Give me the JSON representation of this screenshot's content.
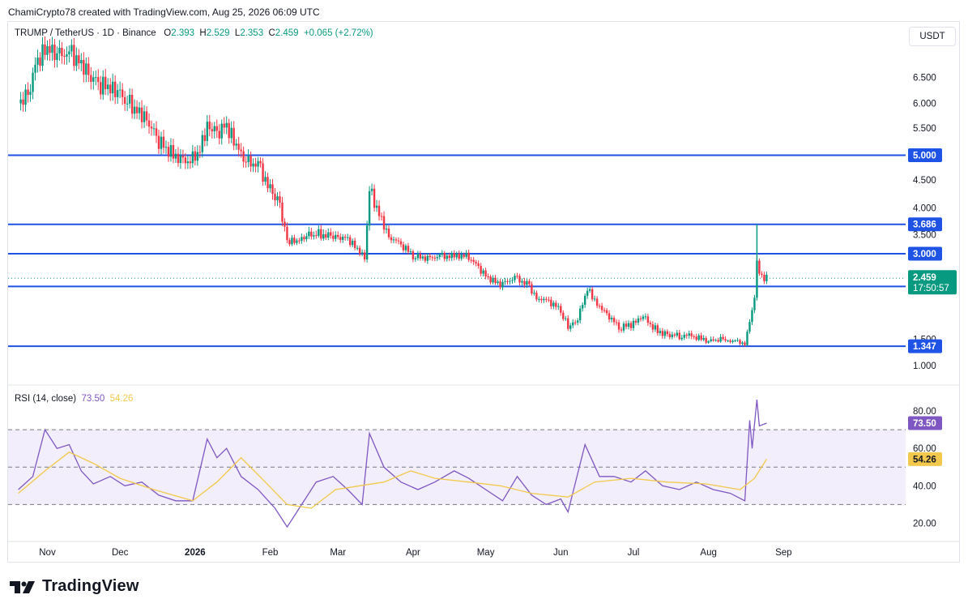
{
  "caption": "ChamiCrypto78 created with TradingView.com, Aug 25, 2026 06:09 UTC",
  "legend": {
    "symbol": "TRUMP / TetherUS · 1D · Binance",
    "o_label": "O",
    "o": "2.393",
    "h_label": "H",
    "h": "2.529",
    "l_label": "L",
    "l": "2.353",
    "c_label": "C",
    "c": "2.459",
    "change": "+0.065 (+2.72%)"
  },
  "currency": "USDT",
  "rsi_legend": {
    "label": "RSI (14, close)",
    "rsi": "73.50",
    "ma": "54.26"
  },
  "brand": "TradingView",
  "colors": {
    "up": "#089981",
    "down": "#f23645",
    "level": "#1e53e5",
    "rsi": "#7e57c2",
    "rsi_ma": "#f2c94c",
    "band": "#f3eefb"
  },
  "chart_data": [
    {
      "type": "candlestick",
      "ylim": [
        0.9,
        7.2
      ],
      "y_ticks": [
        "6.500",
        "6.000",
        "5.500",
        "5.000",
        "4.500",
        "4.000",
        "3.500",
        "1.500",
        "1.000"
      ],
      "x_ticks": [
        "Nov",
        "Dec",
        "2026",
        "Feb",
        "Mar",
        "Apr",
        "May",
        "Jun",
        "Jul",
        "Aug",
        "Sep"
      ],
      "levels": [
        {
          "label": "5.000",
          "value": 5.0
        },
        {
          "label": "3.686",
          "value": 3.686
        },
        {
          "label": "3.000",
          "value": 3.0
        },
        {
          "label": "2.300",
          "value": 2.3
        },
        {
          "label": "1.347",
          "value": 1.347
        }
      ],
      "last_price": {
        "label": "2.459",
        "countdown": "17:50:57",
        "value": 2.459
      },
      "series": [
        {
          "date": "2025-10-20",
          "close": 6.0
        },
        {
          "date": "2025-10-24",
          "close": 6.2
        },
        {
          "date": "2025-10-28",
          "close": 6.9
        },
        {
          "date": "2025-11-01",
          "close": 7.1
        },
        {
          "date": "2025-11-05",
          "close": 6.95
        },
        {
          "date": "2025-11-10",
          "close": 7.0
        },
        {
          "date": "2025-11-14",
          "close": 6.85
        },
        {
          "date": "2025-11-18",
          "close": 6.6
        },
        {
          "date": "2025-11-22",
          "close": 6.4
        },
        {
          "date": "2025-11-26",
          "close": 6.3
        },
        {
          "date": "2025-11-30",
          "close": 6.2
        },
        {
          "date": "2025-12-04",
          "close": 6.0
        },
        {
          "date": "2025-12-08",
          "close": 5.85
        },
        {
          "date": "2025-12-12",
          "close": 5.7
        },
        {
          "date": "2025-12-16",
          "close": 5.35
        },
        {
          "date": "2025-12-20",
          "close": 5.1
        },
        {
          "date": "2025-12-25",
          "close": 4.95
        },
        {
          "date": "2025-12-30",
          "close": 4.85
        },
        {
          "date": "2026-01-03",
          "close": 5.1
        },
        {
          "date": "2026-01-06",
          "close": 5.55
        },
        {
          "date": "2026-01-10",
          "close": 5.45
        },
        {
          "date": "2026-01-14",
          "close": 5.55
        },
        {
          "date": "2026-01-18",
          "close": 5.15
        },
        {
          "date": "2026-01-22",
          "close": 4.85
        },
        {
          "date": "2026-01-27",
          "close": 4.8
        },
        {
          "date": "2026-02-01",
          "close": 4.3
        },
        {
          "date": "2026-02-05",
          "close": 4.1
        },
        {
          "date": "2026-02-08",
          "close": 3.35
        },
        {
          "date": "2026-02-12",
          "close": 3.3
        },
        {
          "date": "2026-02-16",
          "close": 3.45
        },
        {
          "date": "2026-02-20",
          "close": 3.5
        },
        {
          "date": "2026-02-25",
          "close": 3.45
        },
        {
          "date": "2026-03-01",
          "close": 3.45
        },
        {
          "date": "2026-03-05",
          "close": 3.4
        },
        {
          "date": "2026-03-09",
          "close": 3.1
        },
        {
          "date": "2026-03-12",
          "close": 2.9
        },
        {
          "date": "2026-03-14",
          "close": 4.3
        },
        {
          "date": "2026-03-18",
          "close": 3.9
        },
        {
          "date": "2026-03-22",
          "close": 3.45
        },
        {
          "date": "2026-03-27",
          "close": 3.25
        },
        {
          "date": "2026-04-01",
          "close": 2.95
        },
        {
          "date": "2026-04-06",
          "close": 2.9
        },
        {
          "date": "2026-04-12",
          "close": 2.92
        },
        {
          "date": "2026-04-18",
          "close": 2.95
        },
        {
          "date": "2026-04-24",
          "close": 2.95
        },
        {
          "date": "2026-04-28",
          "close": 2.7
        },
        {
          "date": "2026-05-02",
          "close": 2.45
        },
        {
          "date": "2026-05-07",
          "close": 2.35
        },
        {
          "date": "2026-05-13",
          "close": 2.45
        },
        {
          "date": "2026-05-18",
          "close": 2.35
        },
        {
          "date": "2026-05-22",
          "close": 2.1
        },
        {
          "date": "2026-05-27",
          "close": 2.05
        },
        {
          "date": "2026-06-01",
          "close": 1.9
        },
        {
          "date": "2026-06-04",
          "close": 1.65
        },
        {
          "date": "2026-06-08",
          "close": 1.75
        },
        {
          "date": "2026-06-12",
          "close": 2.25
        },
        {
          "date": "2026-06-16",
          "close": 2.0
        },
        {
          "date": "2026-06-20",
          "close": 1.85
        },
        {
          "date": "2026-06-25",
          "close": 1.65
        },
        {
          "date": "2026-07-01",
          "close": 1.7
        },
        {
          "date": "2026-07-05",
          "close": 1.8
        },
        {
          "date": "2026-07-09",
          "close": 1.65
        },
        {
          "date": "2026-07-14",
          "close": 1.55
        },
        {
          "date": "2026-07-20",
          "close": 1.55
        },
        {
          "date": "2026-07-26",
          "close": 1.55
        },
        {
          "date": "2026-07-31",
          "close": 1.47
        },
        {
          "date": "2026-08-06",
          "close": 1.48
        },
        {
          "date": "2026-08-12",
          "close": 1.45
        },
        {
          "date": "2026-08-16",
          "close": 1.4
        },
        {
          "date": "2026-08-18",
          "close": 1.75
        },
        {
          "date": "2026-08-20",
          "close": 2.1
        },
        {
          "date": "2026-08-21",
          "close": 2.9
        },
        {
          "date": "2026-08-22",
          "close": 2.6
        },
        {
          "date": "2026-08-24",
          "close": 2.394
        },
        {
          "date": "2026-08-25",
          "close": 2.459
        }
      ],
      "spike": {
        "date": "2026-08-21",
        "high": 3.686
      }
    },
    {
      "type": "line",
      "title": "RSI (14, close)",
      "ylim": [
        14,
        92
      ],
      "y_ticks": [
        "80.00",
        "60.00",
        "40.00",
        "20.00"
      ],
      "bands": [
        70,
        50,
        30
      ],
      "series": [
        {
          "name": "RSI",
          "last": "73.50",
          "points": [
            [
              "2025-10-20",
              38
            ],
            [
              "2025-10-26",
              45
            ],
            [
              "2025-10-31",
              70
            ],
            [
              "2025-11-05",
              60
            ],
            [
              "2025-11-10",
              62
            ],
            [
              "2025-11-15",
              48
            ],
            [
              "2025-11-20",
              41
            ],
            [
              "2025-11-27",
              45
            ],
            [
              "2025-12-03",
              40
            ],
            [
              "2025-12-10",
              42
            ],
            [
              "2025-12-17",
              35
            ],
            [
              "2025-12-24",
              32
            ],
            [
              "2025-12-31",
              32
            ],
            [
              "2026-01-06",
              65
            ],
            [
              "2026-01-10",
              55
            ],
            [
              "2026-01-14",
              60
            ],
            [
              "2026-01-20",
              45
            ],
            [
              "2026-01-27",
              38
            ],
            [
              "2026-02-03",
              28
            ],
            [
              "2026-02-08",
              18
            ],
            [
              "2026-02-14",
              30
            ],
            [
              "2026-02-20",
              42
            ],
            [
              "2026-02-27",
              45
            ],
            [
              "2026-03-05",
              38
            ],
            [
              "2026-03-11",
              30
            ],
            [
              "2026-03-14",
              68
            ],
            [
              "2026-03-20",
              50
            ],
            [
              "2026-03-27",
              42
            ],
            [
              "2026-04-03",
              38
            ],
            [
              "2026-04-10",
              42
            ],
            [
              "2026-04-18",
              48
            ],
            [
              "2026-04-24",
              44
            ],
            [
              "2026-05-01",
              38
            ],
            [
              "2026-05-08",
              32
            ],
            [
              "2026-05-14",
              45
            ],
            [
              "2026-05-20",
              35
            ],
            [
              "2026-05-26",
              30
            ],
            [
              "2026-06-01",
              33
            ],
            [
              "2026-06-04",
              26
            ],
            [
              "2026-06-11",
              62
            ],
            [
              "2026-06-17",
              45
            ],
            [
              "2026-06-23",
              45
            ],
            [
              "2026-06-30",
              42
            ],
            [
              "2026-07-06",
              48
            ],
            [
              "2026-07-13",
              40
            ],
            [
              "2026-07-20",
              38
            ],
            [
              "2026-07-27",
              42
            ],
            [
              "2026-08-03",
              38
            ],
            [
              "2026-08-10",
              36
            ],
            [
              "2026-08-16",
              32
            ],
            [
              "2026-08-18",
              75
            ],
            [
              "2026-08-19",
              60
            ],
            [
              "2026-08-21",
              86
            ],
            [
              "2026-08-22",
              72
            ],
            [
              "2026-08-25",
              73.5
            ]
          ]
        },
        {
          "name": "MA",
          "last": "54.26",
          "points": [
            [
              "2025-10-20",
              36
            ],
            [
              "2025-10-31",
              48
            ],
            [
              "2025-11-10",
              58
            ],
            [
              "2025-11-20",
              52
            ],
            [
              "2025-12-01",
              44
            ],
            [
              "2025-12-15",
              38
            ],
            [
              "2025-12-31",
              32
            ],
            [
              "2026-01-10",
              42
            ],
            [
              "2026-01-20",
              55
            ],
            [
              "2026-01-30",
              42
            ],
            [
              "2026-02-08",
              30
            ],
            [
              "2026-02-18",
              28
            ],
            [
              "2026-02-28",
              38
            ],
            [
              "2026-03-10",
              40
            ],
            [
              "2026-03-20",
              42
            ],
            [
              "2026-03-31",
              48
            ],
            [
              "2026-04-10",
              44
            ],
            [
              "2026-04-24",
              42
            ],
            [
              "2026-05-07",
              40
            ],
            [
              "2026-05-20",
              36
            ],
            [
              "2026-06-04",
              34
            ],
            [
              "2026-06-15",
              42
            ],
            [
              "2026-06-30",
              44
            ],
            [
              "2026-07-15",
              42
            ],
            [
              "2026-07-31",
              41
            ],
            [
              "2026-08-14",
              38
            ],
            [
              "2026-08-20",
              44
            ],
            [
              "2026-08-25",
              54.26
            ]
          ]
        }
      ]
    }
  ]
}
